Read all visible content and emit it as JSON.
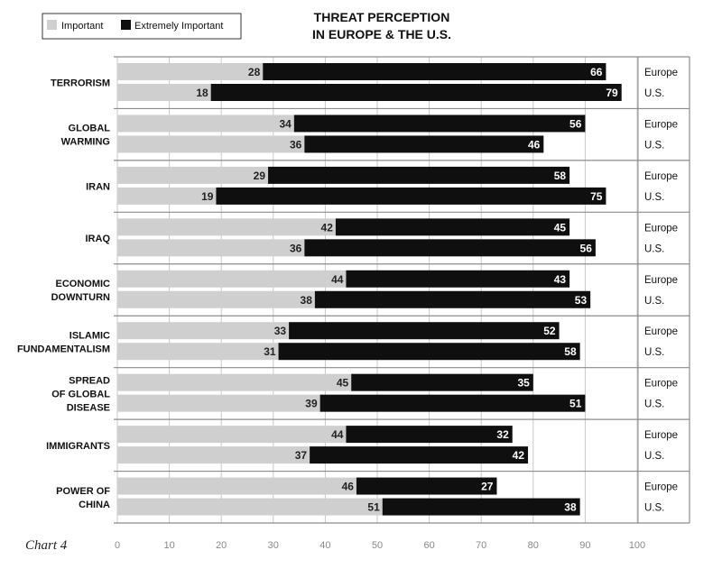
{
  "header": {
    "title_line1": "THREAT PERCEPTION",
    "title_line2": "IN EUROPE & THE U.S.",
    "chart_label": "Chart 4"
  },
  "legend": {
    "important": "Important",
    "extremely_important": "Extremely Important"
  },
  "colors": {
    "important": "#cfcfcf",
    "extremely_important": "#0f0f0f",
    "grid": "#c7c7c7",
    "frame": "#8c8c8c"
  },
  "chart_data": {
    "type": "bar",
    "orientation": "horizontal",
    "stacked": true,
    "title": "THREAT PERCEPTION IN EUROPE & THE U.S.",
    "xlim": [
      0,
      100
    ],
    "xticks": [
      0,
      10,
      20,
      30,
      40,
      50,
      60,
      70,
      80,
      90,
      100
    ],
    "grid": true,
    "legend_position": "top-left",
    "series": [
      {
        "name": "Important"
      },
      {
        "name": "Extremely Important"
      }
    ],
    "groups": [
      {
        "label": [
          "TERRORISM"
        ],
        "rows": [
          {
            "region": "Europe",
            "important": 28,
            "extremely_important": 66
          },
          {
            "region": "U.S.",
            "important": 18,
            "extremely_important": 79
          }
        ]
      },
      {
        "label": [
          "GLOBAL",
          "WARMING"
        ],
        "rows": [
          {
            "region": "Europe",
            "important": 34,
            "extremely_important": 56
          },
          {
            "region": "U.S.",
            "important": 36,
            "extremely_important": 46
          }
        ]
      },
      {
        "label": [
          "IRAN"
        ],
        "rows": [
          {
            "region": "Europe",
            "important": 29,
            "extremely_important": 58
          },
          {
            "region": "U.S.",
            "important": 19,
            "extremely_important": 75
          }
        ]
      },
      {
        "label": [
          "IRAQ"
        ],
        "rows": [
          {
            "region": "Europe",
            "important": 42,
            "extremely_important": 45
          },
          {
            "region": "U.S.",
            "important": 36,
            "extremely_important": 56
          }
        ]
      },
      {
        "label": [
          "ECONOMIC",
          "DOWNTURN"
        ],
        "rows": [
          {
            "region": "Europe",
            "important": 44,
            "extremely_important": 43
          },
          {
            "region": "U.S.",
            "important": 38,
            "extremely_important": 53
          }
        ]
      },
      {
        "label": [
          "ISLAMIC",
          "FUNDAMENTALISM"
        ],
        "rows": [
          {
            "region": "Europe",
            "important": 33,
            "extremely_important": 52
          },
          {
            "region": "U.S.",
            "important": 31,
            "extremely_important": 58
          }
        ]
      },
      {
        "label": [
          "SPREAD",
          "OF GLOBAL",
          "DISEASE"
        ],
        "rows": [
          {
            "region": "Europe",
            "important": 45,
            "extremely_important": 35
          },
          {
            "region": "U.S.",
            "important": 39,
            "extremely_important": 51
          }
        ]
      },
      {
        "label": [
          "IMMIGRANTS"
        ],
        "rows": [
          {
            "region": "Europe",
            "important": 44,
            "extremely_important": 32
          },
          {
            "region": "U.S.",
            "important": 37,
            "extremely_important": 42
          }
        ]
      },
      {
        "label": [
          "POWER OF",
          "CHINA"
        ],
        "rows": [
          {
            "region": "Europe",
            "important": 46,
            "extremely_important": 27
          },
          {
            "region": "U.S.",
            "important": 51,
            "extremely_important": 38
          }
        ]
      }
    ]
  }
}
